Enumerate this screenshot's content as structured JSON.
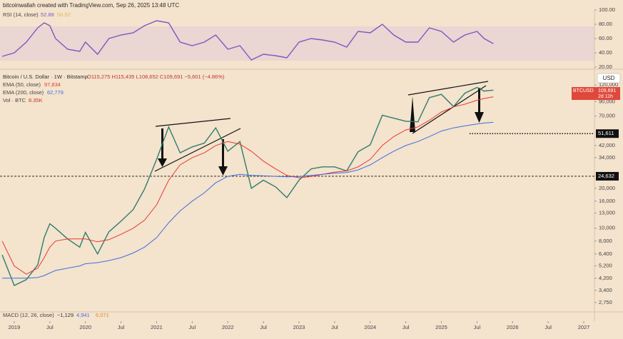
{
  "caption": "bitcoinwallah created with TradingView.com, Sep 26, 2025 13:48 UTC",
  "chart_data": [
    {
      "type": "line",
      "title": "RSI (14, close)",
      "x": [
        2018.83,
        2019.0,
        2019.17,
        2019.33,
        2019.42,
        2019.5,
        2019.58,
        2019.75,
        2019.92,
        2020.0,
        2020.17,
        2020.33,
        2020.5,
        2020.67,
        2020.83,
        2021.0,
        2021.17,
        2021.33,
        2021.5,
        2021.67,
        2021.83,
        2022.0,
        2022.17,
        2022.33,
        2022.5,
        2022.67,
        2022.83,
        2023.0,
        2023.17,
        2023.33,
        2023.5,
        2023.67,
        2023.83,
        2024.0,
        2024.17,
        2024.33,
        2024.5,
        2024.67,
        2024.83,
        2025.0,
        2025.17,
        2025.33,
        2025.5,
        2025.6,
        2025.73
      ],
      "series": [
        {
          "name": "RSI (14, close)",
          "color": "#7e57c2",
          "last_label": "52.88",
          "ma_label": "50.52",
          "values": [
            35,
            40,
            55,
            75,
            82,
            78,
            60,
            45,
            42,
            55,
            38,
            60,
            65,
            68,
            78,
            85,
            82,
            55,
            50,
            55,
            65,
            45,
            50,
            30,
            38,
            36,
            33,
            55,
            60,
            58,
            55,
            48,
            70,
            68,
            80,
            65,
            55,
            55,
            75,
            70,
            55,
            65,
            70,
            60,
            52.88
          ]
        }
      ],
      "xlim": [
        2018.8,
        2027.15
      ],
      "ylim": [
        20,
        100
      ],
      "yticks": [
        {
          "value": 100,
          "label": "100.00"
        },
        {
          "value": 80,
          "label": "80.00"
        },
        {
          "value": 60,
          "label": "60.00"
        },
        {
          "value": 40,
          "label": "40.00"
        },
        {
          "value": 20,
          "label": "20.00"
        }
      ]
    },
    {
      "type": "line",
      "title": "Bitcoin / U.S. Dollar · 1W · Bitstamp",
      "ohlc": "O115,275 H115,435 L108,652 C109,691 −5,601 (−4.86%)",
      "currency": "USD",
      "price_box": {
        "symbol": "BTCUSD",
        "price": "109,691",
        "countdown": "2d 11h"
      },
      "volume": {
        "name": "Vol · BTC",
        "last_label": "8.35K"
      },
      "macd": {
        "name": "MACD (12, 26, close)",
        "labels": [
          "−1,129",
          "4,941",
          "6,071"
        ]
      },
      "x": [
        2018.83,
        2019.0,
        2019.17,
        2019.33,
        2019.42,
        2019.5,
        2019.58,
        2019.75,
        2019.92,
        2020.0,
        2020.17,
        2020.33,
        2020.5,
        2020.67,
        2020.83,
        2021.0,
        2021.17,
        2021.33,
        2021.5,
        2021.67,
        2021.83,
        2022.0,
        2022.17,
        2022.33,
        2022.5,
        2022.67,
        2022.83,
        2023.0,
        2023.17,
        2023.33,
        2023.5,
        2023.67,
        2023.83,
        2024.0,
        2024.17,
        2024.33,
        2024.5,
        2024.67,
        2024.83,
        2025.0,
        2025.17,
        2025.33,
        2025.5,
        2025.6,
        2025.73
      ],
      "series": [
        {
          "name": "Bitcoin / U.S. Dollar · 1W · Bitstamp",
          "color": "#2f7d6d",
          "values": [
            6300,
            3700,
            4100,
            5300,
            8500,
            10800,
            10000,
            8300,
            7200,
            9300,
            6400,
            9400,
            11300,
            13800,
            19700,
            33000,
            58000,
            37000,
            41000,
            43800,
            57000,
            38000,
            45000,
            20000,
            23000,
            20500,
            17000,
            23000,
            28000,
            29000,
            29000,
            27000,
            37700,
            42500,
            71000,
            67500,
            64000,
            63300,
            96400,
            102000,
            82500,
            104000,
            115000,
            108000,
            109691
          ]
        },
        {
          "name": "EMA (50, close)",
          "color": "#e53935",
          "last_label": "97,834",
          "values": [
            8000,
            5200,
            4500,
            5000,
            6000,
            7200,
            8000,
            8300,
            8300,
            8300,
            7900,
            8200,
            9000,
            10000,
            11500,
            15000,
            23000,
            30000,
            34000,
            37000,
            42000,
            45000,
            43000,
            38000,
            32000,
            28000,
            25000,
            24000,
            24500,
            25500,
            26500,
            27000,
            29000,
            33000,
            42000,
            49000,
            55000,
            58000,
            65000,
            75000,
            82000,
            86000,
            92000,
            95000,
            97834
          ]
        },
        {
          "name": "EMA (200, close)",
          "color": "#3d6fe0",
          "last_label": "62,779",
          "values": [
            4200,
            4200,
            4200,
            4250,
            4400,
            4600,
            4800,
            5000,
            5200,
            5400,
            5500,
            5700,
            6000,
            6500,
            7200,
            8500,
            11000,
            13500,
            16000,
            18500,
            22000,
            24600,
            25500,
            25000,
            24800,
            24600,
            24400,
            24500,
            25000,
            25500,
            26000,
            26300,
            27500,
            30000,
            34000,
            38000,
            42000,
            45000,
            49000,
            54000,
            57000,
            59000,
            61000,
            62000,
            62779
          ]
        }
      ],
      "log_scale": true,
      "xlim": [
        2018.8,
        2027.15
      ],
      "xticks": [
        {
          "value": 2019,
          "label": "2019"
        },
        {
          "value": 2019.5,
          "label": "Jul"
        },
        {
          "value": 2020,
          "label": "2020"
        },
        {
          "value": 2020.5,
          "label": "Jul"
        },
        {
          "value": 2021,
          "label": "2021"
        },
        {
          "value": 2021.5,
          "label": "Jul"
        },
        {
          "value": 2022,
          "label": "2022"
        },
        {
          "value": 2022.5,
          "label": "Jul"
        },
        {
          "value": 2023,
          "label": "2023"
        },
        {
          "value": 2023.5,
          "label": "Jul"
        },
        {
          "value": 2024,
          "label": "2024"
        },
        {
          "value": 2024.5,
          "label": "Jul"
        },
        {
          "value": 2025,
          "label": "2025"
        },
        {
          "value": 2025.5,
          "label": "Jul"
        },
        {
          "value": 2026,
          "label": "2026"
        },
        {
          "value": 2026.5,
          "label": "Jul"
        },
        {
          "value": 2027,
          "label": "2027"
        }
      ],
      "ylim": [
        2400,
        152000
      ],
      "yticks": [
        {
          "value": 120000,
          "label": "120,000"
        },
        {
          "value": 90000,
          "label": "90,000"
        },
        {
          "value": 70000,
          "label": "70,000"
        },
        {
          "value": 42000,
          "label": "42,000"
        },
        {
          "value": 34000,
          "label": "34,000"
        },
        {
          "value": 20000,
          "label": "20,000"
        },
        {
          "value": 16000,
          "label": "16,000"
        },
        {
          "value": 13000,
          "label": "13,000"
        },
        {
          "value": 10000,
          "label": "10,000"
        },
        {
          "value": 8000,
          "label": "8,000"
        },
        {
          "value": 6400,
          "label": "6,400"
        },
        {
          "value": 5200,
          "label": "5,200"
        },
        {
          "value": 4200,
          "label": "4,200"
        },
        {
          "value": 3400,
          "label": "3,400"
        },
        {
          "value": 2750,
          "label": "2,750"
        }
      ],
      "levels": [
        {
          "value": 51611,
          "label": "51,611"
        },
        {
          "value": 24632,
          "label": "24,632"
        }
      ]
    }
  ]
}
